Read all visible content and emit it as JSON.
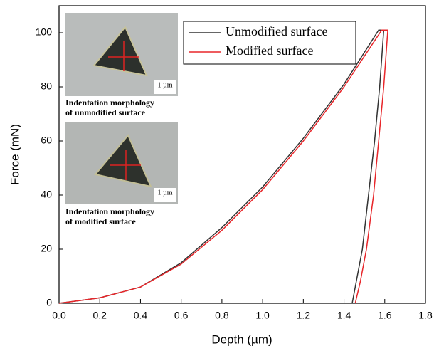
{
  "chart_data": {
    "type": "line",
    "x_label": "Depth (µm)",
    "y_label": "Force (mN)",
    "xlim": [
      0,
      1.8
    ],
    "ylim": [
      0,
      110
    ],
    "xticks": [
      {
        "value": 0,
        "label": "0.0"
      },
      0.2,
      0.4,
      0.6,
      0.8,
      {
        "value": 1,
        "label": "1.0"
      },
      1.2,
      1.4,
      1.6,
      1.8
    ],
    "yticks": [
      0,
      20,
      40,
      60,
      80,
      100
    ],
    "grid": false,
    "legend": "upper center",
    "series": [
      {
        "name": "Unmodified surface",
        "color": "#333333",
        "x": [
          0,
          0.2,
          0.4,
          0.6,
          0.8,
          1.0,
          1.2,
          1.4,
          1.57,
          1.595,
          1.575,
          1.55,
          1.52,
          1.49,
          1.46,
          1.44
        ],
        "values": [
          0,
          2,
          6,
          15,
          28,
          43,
          61,
          81,
          101,
          101,
          80,
          60,
          40,
          20,
          8,
          0
        ]
      },
      {
        "name": "Modified surface",
        "color": "#e8262a",
        "x": [
          0,
          0.2,
          0.4,
          0.6,
          0.8,
          1.0,
          1.2,
          1.4,
          1.585,
          1.615,
          1.595,
          1.57,
          1.545,
          1.51,
          1.48,
          1.455
        ],
        "values": [
          0,
          2,
          6,
          14.5,
          27,
          42,
          60,
          80,
          101,
          101,
          80,
          60,
          40,
          20,
          8,
          0
        ]
      }
    ],
    "insets": [
      {
        "scale_label": "1 µm",
        "caption": [
          "Indentation morphology",
          "of unmodified surface"
        ]
      },
      {
        "scale_label": "1 µm",
        "caption": [
          "Indentation morphology",
          "of modified surface"
        ]
      }
    ]
  }
}
